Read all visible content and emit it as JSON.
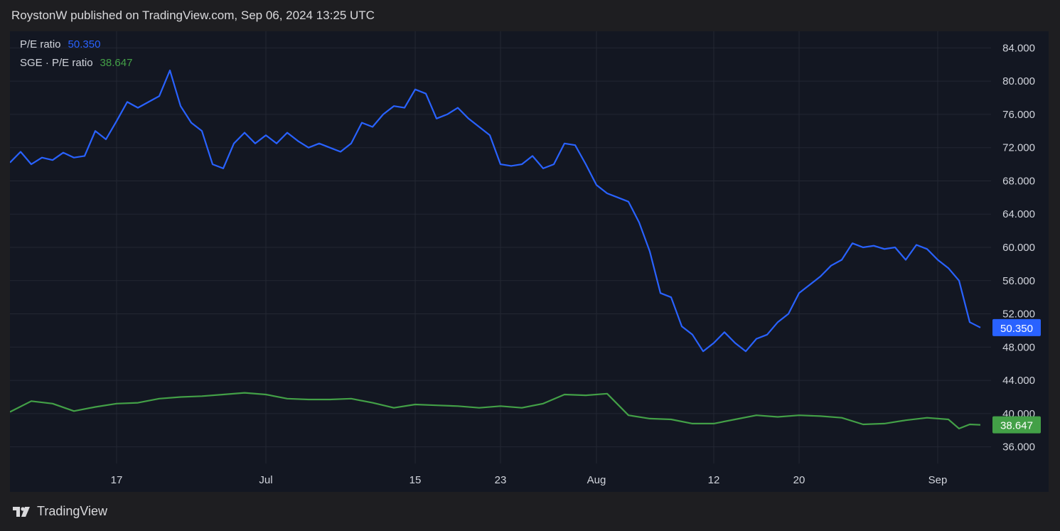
{
  "header": {
    "text": "RoystonW published on TradingView.com, Sep 06, 2024 13:25 UTC"
  },
  "footer": {
    "brand": "TradingView",
    "logo_icon": "tradingview-logo-icon"
  },
  "legend": [
    {
      "label": "P/E ratio",
      "value": "50.350",
      "color": "#2962ff"
    },
    {
      "label": "SGE · P/E ratio",
      "value": "38.647",
      "color": "#43a047"
    }
  ],
  "colors": {
    "background": "#1e1e21",
    "plot_background": "#131722",
    "grid": "#232733",
    "axis_text": "#d1d4dc"
  },
  "chart_data": {
    "type": "line",
    "title": "",
    "xlabel": "",
    "ylabel": "",
    "ylim": [
      34.0,
      86.0
    ],
    "grid": true,
    "legend_position": "top-left",
    "y_ticks": [
      "84.000",
      "80.000",
      "76.000",
      "72.000",
      "68.000",
      "64.000",
      "60.000",
      "56.000",
      "52.000",
      "48.000",
      "44.000",
      "40.000",
      "36.000"
    ],
    "x_ticks": [
      {
        "label": "17",
        "date": "2024-06-17"
      },
      {
        "label": "Jul",
        "date": "2024-07-01"
      },
      {
        "label": "15",
        "date": "2024-07-15"
      },
      {
        "label": "23",
        "date": "2024-07-23"
      },
      {
        "label": "Aug",
        "date": "2024-08-01"
      },
      {
        "label": "12",
        "date": "2024-08-12"
      },
      {
        "label": "20",
        "date": "2024-08-20"
      },
      {
        "label": "Sep",
        "date": "2024-09-02"
      }
    ],
    "x_range": [
      "2024-06-07",
      "2024-09-07"
    ],
    "series": [
      {
        "name": "P/E ratio",
        "color": "#2962ff",
        "last_value": "50.350",
        "points": [
          [
            "2024-06-07",
            70.2
          ],
          [
            "2024-06-08",
            71.5
          ],
          [
            "2024-06-09",
            70.0
          ],
          [
            "2024-06-10",
            70.8
          ],
          [
            "2024-06-11",
            70.5
          ],
          [
            "2024-06-12",
            71.4
          ],
          [
            "2024-06-13",
            70.8
          ],
          [
            "2024-06-14",
            71.0
          ],
          [
            "2024-06-15",
            74.0
          ],
          [
            "2024-06-16",
            73.0
          ],
          [
            "2024-06-17",
            75.2
          ],
          [
            "2024-06-18",
            77.5
          ],
          [
            "2024-06-19",
            76.8
          ],
          [
            "2024-06-20",
            77.5
          ],
          [
            "2024-06-21",
            78.2
          ],
          [
            "2024-06-22",
            81.3
          ],
          [
            "2024-06-23",
            77.0
          ],
          [
            "2024-06-24",
            75.0
          ],
          [
            "2024-06-25",
            74.0
          ],
          [
            "2024-06-26",
            70.0
          ],
          [
            "2024-06-27",
            69.5
          ],
          [
            "2024-06-28",
            72.5
          ],
          [
            "2024-06-29",
            73.8
          ],
          [
            "2024-06-30",
            72.5
          ],
          [
            "2024-07-01",
            73.5
          ],
          [
            "2024-07-02",
            72.5
          ],
          [
            "2024-07-03",
            73.8
          ],
          [
            "2024-07-04",
            72.8
          ],
          [
            "2024-07-05",
            72.0
          ],
          [
            "2024-07-06",
            72.5
          ],
          [
            "2024-07-07",
            72.0
          ],
          [
            "2024-07-08",
            71.5
          ],
          [
            "2024-07-09",
            72.5
          ],
          [
            "2024-07-10",
            75.0
          ],
          [
            "2024-07-11",
            74.5
          ],
          [
            "2024-07-12",
            76.0
          ],
          [
            "2024-07-13",
            77.0
          ],
          [
            "2024-07-14",
            76.8
          ],
          [
            "2024-07-15",
            79.0
          ],
          [
            "2024-07-16",
            78.5
          ],
          [
            "2024-07-17",
            75.5
          ],
          [
            "2024-07-18",
            76.0
          ],
          [
            "2024-07-19",
            76.8
          ],
          [
            "2024-07-20",
            75.5
          ],
          [
            "2024-07-21",
            74.5
          ],
          [
            "2024-07-22",
            73.5
          ],
          [
            "2024-07-23",
            70.0
          ],
          [
            "2024-07-24",
            69.8
          ],
          [
            "2024-07-25",
            70.0
          ],
          [
            "2024-07-26",
            71.0
          ],
          [
            "2024-07-27",
            69.5
          ],
          [
            "2024-07-28",
            70.0
          ],
          [
            "2024-07-29",
            72.5
          ],
          [
            "2024-07-30",
            72.3
          ],
          [
            "2024-07-31",
            70.0
          ],
          [
            "2024-08-01",
            67.5
          ],
          [
            "2024-08-02",
            66.5
          ],
          [
            "2024-08-03",
            66.0
          ],
          [
            "2024-08-04",
            65.5
          ],
          [
            "2024-08-05",
            63.0
          ],
          [
            "2024-08-06",
            59.5
          ],
          [
            "2024-08-07",
            54.5
          ],
          [
            "2024-08-08",
            54.0
          ],
          [
            "2024-08-09",
            50.5
          ],
          [
            "2024-08-10",
            49.5
          ],
          [
            "2024-08-11",
            47.5
          ],
          [
            "2024-08-12",
            48.5
          ],
          [
            "2024-08-13",
            49.8
          ],
          [
            "2024-08-14",
            48.5
          ],
          [
            "2024-08-15",
            47.5
          ],
          [
            "2024-08-16",
            49.0
          ],
          [
            "2024-08-17",
            49.5
          ],
          [
            "2024-08-18",
            51.0
          ],
          [
            "2024-08-19",
            52.0
          ],
          [
            "2024-08-20",
            54.5
          ],
          [
            "2024-08-21",
            55.5
          ],
          [
            "2024-08-22",
            56.5
          ],
          [
            "2024-08-23",
            57.8
          ],
          [
            "2024-08-24",
            58.5
          ],
          [
            "2024-08-25",
            60.5
          ],
          [
            "2024-08-26",
            60.0
          ],
          [
            "2024-08-27",
            60.2
          ],
          [
            "2024-08-28",
            59.8
          ],
          [
            "2024-08-29",
            60.0
          ],
          [
            "2024-08-30",
            58.5
          ],
          [
            "2024-08-31",
            60.3
          ],
          [
            "2024-09-01",
            59.8
          ],
          [
            "2024-09-02",
            58.5
          ],
          [
            "2024-09-03",
            57.5
          ],
          [
            "2024-09-04",
            56.0
          ],
          [
            "2024-09-05",
            51.0
          ],
          [
            "2024-09-06",
            50.35
          ]
        ]
      },
      {
        "name": "SGE · P/E ratio",
        "color": "#43a047",
        "last_value": "38.647",
        "points": [
          [
            "2024-06-07",
            40.2
          ],
          [
            "2024-06-09",
            41.5
          ],
          [
            "2024-06-11",
            41.2
          ],
          [
            "2024-06-13",
            40.3
          ],
          [
            "2024-06-15",
            40.8
          ],
          [
            "2024-06-17",
            41.2
          ],
          [
            "2024-06-19",
            41.3
          ],
          [
            "2024-06-21",
            41.8
          ],
          [
            "2024-06-23",
            42.0
          ],
          [
            "2024-06-25",
            42.1
          ],
          [
            "2024-06-27",
            42.3
          ],
          [
            "2024-06-29",
            42.5
          ],
          [
            "2024-07-01",
            42.3
          ],
          [
            "2024-07-03",
            41.8
          ],
          [
            "2024-07-05",
            41.7
          ],
          [
            "2024-07-07",
            41.7
          ],
          [
            "2024-07-09",
            41.8
          ],
          [
            "2024-07-11",
            41.3
          ],
          [
            "2024-07-13",
            40.7
          ],
          [
            "2024-07-15",
            41.1
          ],
          [
            "2024-07-17",
            41.0
          ],
          [
            "2024-07-19",
            40.9
          ],
          [
            "2024-07-21",
            40.7
          ],
          [
            "2024-07-23",
            40.9
          ],
          [
            "2024-07-25",
            40.7
          ],
          [
            "2024-07-27",
            41.2
          ],
          [
            "2024-07-29",
            42.3
          ],
          [
            "2024-07-31",
            42.2
          ],
          [
            "2024-08-02",
            42.4
          ],
          [
            "2024-08-04",
            39.8
          ],
          [
            "2024-08-06",
            39.4
          ],
          [
            "2024-08-08",
            39.3
          ],
          [
            "2024-08-10",
            38.8
          ],
          [
            "2024-08-12",
            38.8
          ],
          [
            "2024-08-14",
            39.3
          ],
          [
            "2024-08-16",
            39.8
          ],
          [
            "2024-08-18",
            39.6
          ],
          [
            "2024-08-20",
            39.8
          ],
          [
            "2024-08-22",
            39.7
          ],
          [
            "2024-08-24",
            39.5
          ],
          [
            "2024-08-26",
            38.7
          ],
          [
            "2024-08-28",
            38.8
          ],
          [
            "2024-08-30",
            39.2
          ],
          [
            "2024-09-01",
            39.5
          ],
          [
            "2024-09-03",
            39.3
          ],
          [
            "2024-09-04",
            38.2
          ],
          [
            "2024-09-05",
            38.7
          ],
          [
            "2024-09-06",
            38.647
          ]
        ]
      }
    ]
  }
}
